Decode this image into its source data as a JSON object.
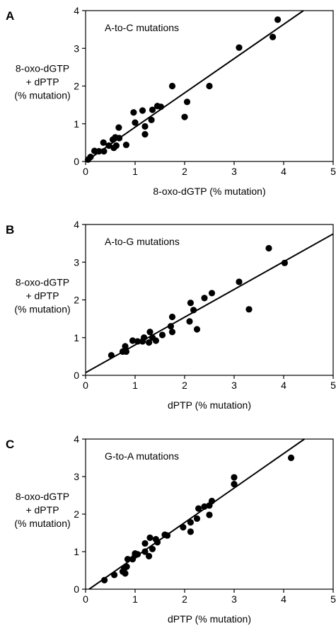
{
  "chart_data": [
    {
      "type": "scatter",
      "panel_label": "A",
      "annotation": "A-to-C mutations",
      "ylabel": [
        "8-oxo-dGTP",
        "+ dPTP",
        "(% mutation)"
      ],
      "xlabel": "8-oxo-dGTP (% mutation)",
      "xlim": [
        0,
        5
      ],
      "ylim": [
        0,
        4
      ],
      "xticks": [
        "0",
        "1",
        "2",
        "3",
        "4",
        "5"
      ],
      "yticks": [
        "0",
        "1",
        "2",
        "3",
        "4"
      ],
      "grid": false,
      "fit_line": {
        "x": [
          0,
          4.4
        ],
        "y": [
          0.0,
          4.0
        ]
      },
      "points": [
        {
          "x": 0.05,
          "y": 0.05
        },
        {
          "x": 0.1,
          "y": 0.12
        },
        {
          "x": 0.18,
          "y": 0.28
        },
        {
          "x": 0.27,
          "y": 0.27
        },
        {
          "x": 0.37,
          "y": 0.27
        },
        {
          "x": 0.36,
          "y": 0.5
        },
        {
          "x": 0.47,
          "y": 0.42
        },
        {
          "x": 0.57,
          "y": 0.36
        },
        {
          "x": 0.62,
          "y": 0.42
        },
        {
          "x": 0.55,
          "y": 0.58
        },
        {
          "x": 0.6,
          "y": 0.64
        },
        {
          "x": 0.68,
          "y": 0.62
        },
        {
          "x": 0.67,
          "y": 0.9
        },
        {
          "x": 0.82,
          "y": 0.44
        },
        {
          "x": 0.97,
          "y": 1.3
        },
        {
          "x": 1.0,
          "y": 1.03
        },
        {
          "x": 1.15,
          "y": 1.35
        },
        {
          "x": 1.2,
          "y": 0.93
        },
        {
          "x": 1.2,
          "y": 0.72
        },
        {
          "x": 1.33,
          "y": 1.1
        },
        {
          "x": 1.35,
          "y": 1.37
        },
        {
          "x": 1.45,
          "y": 1.47
        },
        {
          "x": 1.52,
          "y": 1.45
        },
        {
          "x": 1.75,
          "y": 2.0
        },
        {
          "x": 2.0,
          "y": 1.18
        },
        {
          "x": 2.05,
          "y": 1.58
        },
        {
          "x": 2.5,
          "y": 2.0
        },
        {
          "x": 3.1,
          "y": 3.02
        },
        {
          "x": 3.78,
          "y": 3.3
        },
        {
          "x": 3.88,
          "y": 3.76
        }
      ]
    },
    {
      "type": "scatter",
      "panel_label": "B",
      "annotation": "A-to-G mutations",
      "ylabel": [
        "8-oxo-dGTP",
        "+ dPTP",
        "(% mutation)"
      ],
      "xlabel": "dPTP (% mutation)",
      "xlim": [
        0,
        5
      ],
      "ylim": [
        0,
        4
      ],
      "xticks": [
        "0",
        "1",
        "2",
        "3",
        "4",
        "5"
      ],
      "yticks": [
        "0",
        "1",
        "2",
        "3",
        "4"
      ],
      "grid": false,
      "fit_line": {
        "x": [
          0,
          5.0
        ],
        "y": [
          0.07,
          3.75
        ]
      },
      "points": [
        {
          "x": 0.52,
          "y": 0.53
        },
        {
          "x": 0.75,
          "y": 0.63
        },
        {
          "x": 0.8,
          "y": 0.77
        },
        {
          "x": 0.82,
          "y": 0.63
        },
        {
          "x": 0.95,
          "y": 0.92
        },
        {
          "x": 1.05,
          "y": 0.9
        },
        {
          "x": 1.15,
          "y": 0.9
        },
        {
          "x": 1.18,
          "y": 1.0
        },
        {
          "x": 1.28,
          "y": 0.87
        },
        {
          "x": 1.3,
          "y": 1.15
        },
        {
          "x": 1.35,
          "y": 1.0
        },
        {
          "x": 1.42,
          "y": 0.92
        },
        {
          "x": 1.55,
          "y": 1.07
        },
        {
          "x": 1.72,
          "y": 1.3
        },
        {
          "x": 1.75,
          "y": 1.55
        },
        {
          "x": 1.75,
          "y": 1.15
        },
        {
          "x": 2.1,
          "y": 1.43
        },
        {
          "x": 2.12,
          "y": 1.92
        },
        {
          "x": 2.18,
          "y": 1.73
        },
        {
          "x": 2.25,
          "y": 1.22
        },
        {
          "x": 2.4,
          "y": 2.05
        },
        {
          "x": 2.55,
          "y": 2.18
        },
        {
          "x": 3.1,
          "y": 2.48
        },
        {
          "x": 3.3,
          "y": 1.75
        },
        {
          "x": 3.7,
          "y": 3.37
        },
        {
          "x": 4.02,
          "y": 2.98
        }
      ]
    },
    {
      "type": "scatter",
      "panel_label": "C",
      "annotation": "G-to-A mutations",
      "ylabel": [
        "8-oxo-dGTP",
        "+ dPTP",
        "(% mutation)"
      ],
      "xlabel": "dPTP (% mutation)",
      "xlim": [
        0,
        5
      ],
      "ylim": [
        0,
        4
      ],
      "xticks": [
        "0",
        "1",
        "2",
        "3",
        "4",
        "5"
      ],
      "yticks": [
        "0",
        "1",
        "2",
        "3",
        "4"
      ],
      "grid": false,
      "fit_line": {
        "x": [
          0.07,
          4.42
        ],
        "y": [
          0.0,
          4.0
        ]
      },
      "points": [
        {
          "x": 0.38,
          "y": 0.24
        },
        {
          "x": 0.58,
          "y": 0.38
        },
        {
          "x": 0.75,
          "y": 0.47
        },
        {
          "x": 0.78,
          "y": 0.55
        },
        {
          "x": 0.8,
          "y": 0.42
        },
        {
          "x": 0.83,
          "y": 0.6
        },
        {
          "x": 0.85,
          "y": 0.8
        },
        {
          "x": 0.95,
          "y": 0.8
        },
        {
          "x": 1.0,
          "y": 0.9
        },
        {
          "x": 1.0,
          "y": 0.95
        },
        {
          "x": 1.05,
          "y": 0.93
        },
        {
          "x": 1.2,
          "y": 1.22
        },
        {
          "x": 1.2,
          "y": 1.0
        },
        {
          "x": 1.28,
          "y": 0.88
        },
        {
          "x": 1.3,
          "y": 1.37
        },
        {
          "x": 1.35,
          "y": 1.07
        },
        {
          "x": 1.42,
          "y": 1.33
        },
        {
          "x": 1.45,
          "y": 1.25
        },
        {
          "x": 1.6,
          "y": 1.45
        },
        {
          "x": 1.65,
          "y": 1.43
        },
        {
          "x": 1.97,
          "y": 1.65
        },
        {
          "x": 2.12,
          "y": 1.78
        },
        {
          "x": 2.12,
          "y": 1.53
        },
        {
          "x": 2.25,
          "y": 1.88
        },
        {
          "x": 2.28,
          "y": 2.15
        },
        {
          "x": 2.4,
          "y": 2.2
        },
        {
          "x": 2.5,
          "y": 2.23
        },
        {
          "x": 2.5,
          "y": 1.98
        },
        {
          "x": 2.55,
          "y": 2.35
        },
        {
          "x": 3.0,
          "y": 2.98
        },
        {
          "x": 3.0,
          "y": 2.8
        },
        {
          "x": 4.15,
          "y": 3.5
        }
      ]
    }
  ]
}
